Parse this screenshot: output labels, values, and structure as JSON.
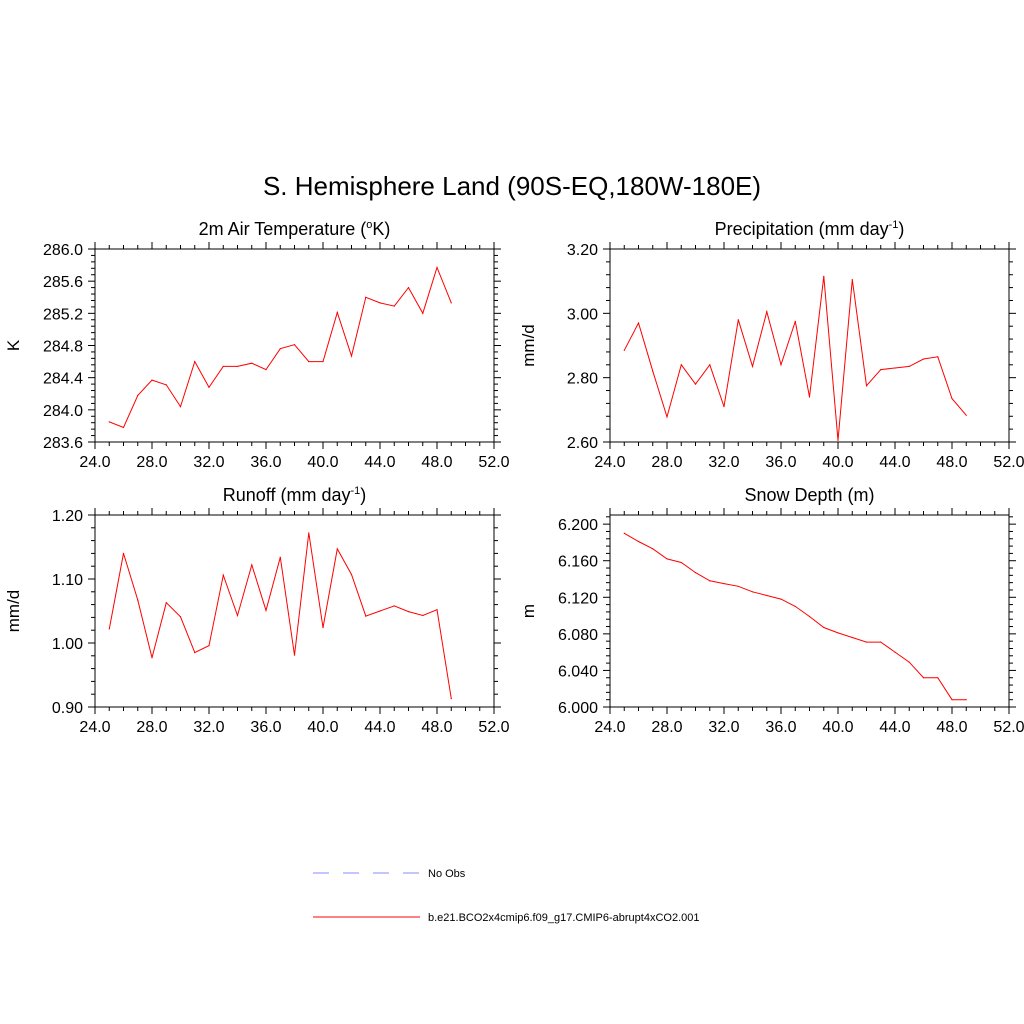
{
  "title": "S. Hemisphere Land (90S-EQ,180W-180E)",
  "colors": {
    "series": "#ff0000",
    "obs": "#a0a0ff",
    "axis": "#000000"
  },
  "chart_data": [
    {
      "type": "line",
      "title": "2m Air Temperature (",
      "title_sup": "o",
      "title_suffix": "K)",
      "xlabel": "",
      "ylabel": "K",
      "xlim": [
        24,
        52
      ],
      "ylim": [
        283.6,
        286.0
      ],
      "xticks": [
        "24.0",
        "28.0",
        "32.0",
        "36.0",
        "40.0",
        "44.0",
        "48.0",
        "52.0"
      ],
      "yticks": [
        "283.6",
        "284.0",
        "284.4",
        "284.8",
        "285.2",
        "285.6",
        "286.0"
      ],
      "x": [
        25,
        26,
        27,
        28,
        29,
        30,
        31,
        32,
        33,
        34,
        35,
        36,
        37,
        38,
        39,
        40,
        41,
        42,
        43,
        44,
        45,
        46,
        47,
        48,
        49
      ],
      "series": [
        {
          "name": "b.e21.BCO2x4cmip6.f09_g17.CMIP6-abrupt4xCO2.001",
          "values": [
            283.85,
            283.78,
            284.18,
            284.37,
            284.31,
            284.04,
            284.6,
            284.28,
            284.54,
            284.54,
            284.58,
            284.5,
            284.76,
            284.81,
            284.6,
            284.6,
            285.21,
            284.67,
            285.4,
            285.33,
            285.29,
            285.52,
            285.2,
            285.77,
            285.33
          ]
        }
      ]
    },
    {
      "type": "line",
      "title": "Precipitation (mm day",
      "title_sup": "-1",
      "title_suffix": ")",
      "xlabel": "",
      "ylabel": "mm/d",
      "xlim": [
        24,
        52
      ],
      "ylim": [
        2.6,
        3.2
      ],
      "xticks": [
        "24.0",
        "28.0",
        "32.0",
        "36.0",
        "40.0",
        "44.0",
        "48.0",
        "52.0"
      ],
      "yticks": [
        "2.60",
        "2.80",
        "3.00",
        "3.20"
      ],
      "x": [
        25,
        26,
        27,
        28,
        29,
        30,
        31,
        32,
        33,
        34,
        35,
        36,
        37,
        38,
        39,
        40,
        41,
        42,
        43,
        44,
        45,
        46,
        47,
        48,
        49
      ],
      "series": [
        {
          "name": "b.e21.BCO2x4cmip6.f09_g17.CMIP6-abrupt4xCO2.001",
          "values": [
            2.885,
            2.97,
            2.82,
            2.678,
            2.84,
            2.78,
            2.84,
            2.71,
            2.98,
            2.835,
            3.005,
            2.84,
            2.975,
            2.74,
            3.115,
            2.605,
            3.105,
            2.775,
            2.825,
            2.83,
            2.835,
            2.858,
            2.865,
            2.735,
            2.683
          ]
        }
      ]
    },
    {
      "type": "line",
      "title": "Runoff (mm day",
      "title_sup": "-1",
      "title_suffix": ")",
      "xlabel": "",
      "ylabel": "mm/d",
      "xlim": [
        24,
        52
      ],
      "ylim": [
        0.9,
        1.2
      ],
      "xticks": [
        "24.0",
        "28.0",
        "32.0",
        "36.0",
        "40.0",
        "44.0",
        "48.0",
        "52.0"
      ],
      "yticks": [
        "0.90",
        "1.00",
        "1.10",
        "1.20"
      ],
      "x": [
        25,
        26,
        27,
        28,
        29,
        30,
        31,
        32,
        33,
        34,
        35,
        36,
        37,
        38,
        39,
        40,
        41,
        42,
        43,
        44,
        45,
        46,
        47,
        48,
        49
      ],
      "series": [
        {
          "name": "b.e21.BCO2x4cmip6.f09_g17.CMIP6-abrupt4xCO2.001",
          "values": [
            1.022,
            1.14,
            1.067,
            0.977,
            1.063,
            1.041,
            0.985,
            0.996,
            1.106,
            1.043,
            1.122,
            1.051,
            1.134,
            0.981,
            1.172,
            1.024,
            1.147,
            1.107,
            1.042,
            1.05,
            1.058,
            1.049,
            1.043,
            1.052,
            0.913
          ]
        }
      ]
    },
    {
      "type": "line",
      "title": "Snow Depth (m)",
      "title_sup": "",
      "title_suffix": "",
      "xlabel": "",
      "ylabel": "m",
      "xlim": [
        24,
        52
      ],
      "ylim": [
        6.0,
        6.21
      ],
      "xticks": [
        "24.0",
        "28.0",
        "32.0",
        "36.0",
        "40.0",
        "44.0",
        "48.0",
        "52.0"
      ],
      "yticks": [
        "6.000",
        "6.040",
        "6.080",
        "6.120",
        "6.160",
        "6.200"
      ],
      "x": [
        25,
        26,
        27,
        28,
        29,
        30,
        31,
        32,
        33,
        34,
        35,
        36,
        37,
        38,
        39,
        40,
        41,
        42,
        43,
        44,
        45,
        46,
        47,
        48,
        49
      ],
      "series": [
        {
          "name": "b.e21.BCO2x4cmip6.f09_g17.CMIP6-abrupt4xCO2.001",
          "values": [
            6.19,
            6.181,
            6.173,
            6.162,
            6.158,
            6.147,
            6.138,
            6.135,
            6.132,
            6.126,
            6.122,
            6.118,
            6.11,
            6.099,
            6.087,
            6.081,
            6.076,
            6.071,
            6.071,
            6.06,
            6.049,
            6.032,
            6.032,
            6.008,
            6.008
          ]
        }
      ]
    }
  ],
  "legend": {
    "placement": "bottom-center",
    "items": [
      {
        "label": "No Obs",
        "style": "dashed"
      },
      {
        "label": "b.e21.BCO2x4cmip6.f09_g17.CMIP6-abrupt4xCO2.001",
        "style": "solid"
      }
    ]
  }
}
